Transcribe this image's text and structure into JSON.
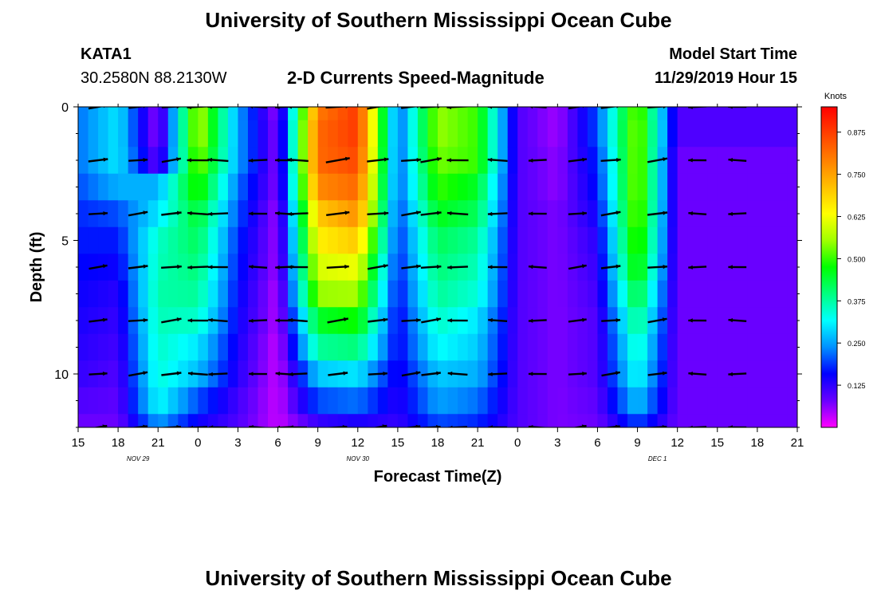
{
  "page": {
    "title_top": "University of Southern Mississippi Ocean Cube",
    "title_bottom": "University of Southern Mississippi Ocean Cube",
    "station": "KATA1",
    "coords": "30.2580N 88.2130W",
    "subtitle": "2-D Currents Speed-Magnitude",
    "start_label": "Model Start Time",
    "start_value": "11/29/2019 Hour 15"
  },
  "colors": {
    "scale": [
      "#ff00ff",
      "#6a00ff",
      "#0000ff",
      "#0090ff",
      "#00ffff",
      "#00ff80",
      "#00ff00",
      "#a0ff00",
      "#ffff00",
      "#ffc000",
      "#ff8000",
      "#ff4000",
      "#ff0000"
    ],
    "arrow": "#000000"
  },
  "chart_data": {
    "type": "heatmap",
    "title": "2-D Currents Speed-Magnitude",
    "xlabel": "Forecast Time(Z)",
    "ylabel": "Depth (ft)",
    "x_ticks": [
      "15",
      "18",
      "21",
      "0",
      "3",
      "6",
      "9",
      "12",
      "15",
      "18",
      "21",
      "0",
      "3",
      "6",
      "9",
      "12",
      "15",
      "18",
      "21"
    ],
    "x_range_hours": [
      0,
      54
    ],
    "date_labels": [
      {
        "label": "NOV 29",
        "hour": 4.5
      },
      {
        "label": "NOV 30",
        "hour": 21
      },
      {
        "label": "DEC 1",
        "hour": 43.5
      }
    ],
    "y_ticks": [
      0,
      5,
      10
    ],
    "y_range": [
      0,
      12
    ],
    "colorbar": {
      "label": "Knots",
      "range": [
        0,
        0.95
      ],
      "ticks": [
        0.125,
        0.25,
        0.375,
        0.5,
        0.625,
        0.75,
        0.875
      ],
      "tick_labels": [
        "0.125",
        "0.250",
        "0.375",
        "0.500",
        "0.625",
        "0.750",
        "0.875"
      ]
    },
    "arrow_depths": [
      0,
      2,
      4,
      6,
      8,
      10,
      12
    ],
    "arrow_hours": [
      1.5,
      4.5,
      7,
      9,
      10.5,
      13.5,
      15.5,
      16.5,
      19.5,
      22.5,
      25,
      26.5,
      28.5,
      31.5,
      34.5,
      37.5,
      40,
      43.5,
      46.5,
      49.5
    ],
    "columns": [
      {
        "hour": 0,
        "speed": [
          0.22,
          0.22,
          0.22,
          0.2,
          0.18,
          0.17,
          0.16,
          0.15,
          0.14,
          0.13,
          0.12,
          0.1,
          0.08
        ]
      },
      {
        "hour": 3,
        "speed": [
          0.3,
          0.3,
          0.3,
          0.26,
          0.2,
          0.17,
          0.15,
          0.13,
          0.12,
          0.11,
          0.1,
          0.09,
          0.08
        ]
      },
      {
        "hour": 6,
        "speed": [
          0.05,
          0.05,
          0.08,
          0.26,
          0.3,
          0.35,
          0.36,
          0.37,
          0.36,
          0.35,
          0.34,
          0.32,
          0.25
        ]
      },
      {
        "hour": 9,
        "speed": [
          0.58,
          0.58,
          0.55,
          0.5,
          0.45,
          0.42,
          0.4,
          0.38,
          0.35,
          0.3,
          0.27,
          0.2,
          0.15
        ]
      },
      {
        "hour": 12,
        "speed": [
          0.25,
          0.25,
          0.25,
          0.22,
          0.2,
          0.18,
          0.17,
          0.16,
          0.15,
          0.14,
          0.13,
          0.11,
          0.1
        ]
      },
      {
        "hour": 15,
        "speed": [
          0.05,
          0.06,
          0.06,
          0.06,
          0.05,
          0.05,
          0.05,
          0.04,
          0.04,
          0.03,
          0.03,
          0.03,
          0.03
        ]
      },
      {
        "hour": 18,
        "speed": [
          0.8,
          0.82,
          0.82,
          0.78,
          0.7,
          0.65,
          0.6,
          0.55,
          0.45,
          0.38,
          0.28,
          0.2,
          0.12
        ]
      },
      {
        "hour": 21,
        "speed": [
          0.88,
          0.88,
          0.86,
          0.82,
          0.77,
          0.7,
          0.62,
          0.56,
          0.48,
          0.4,
          0.3,
          0.22,
          0.14
        ]
      },
      {
        "hour": 24,
        "speed": [
          0.2,
          0.2,
          0.2,
          0.2,
          0.19,
          0.18,
          0.17,
          0.16,
          0.15,
          0.15,
          0.14,
          0.13,
          0.12
        ]
      },
      {
        "hour": 27,
        "speed": [
          0.55,
          0.55,
          0.53,
          0.5,
          0.46,
          0.42,
          0.4,
          0.38,
          0.35,
          0.32,
          0.28,
          0.25,
          0.2
        ]
      },
      {
        "hour": 30,
        "speed": [
          0.5,
          0.5,
          0.5,
          0.45,
          0.42,
          0.38,
          0.36,
          0.34,
          0.3,
          0.28,
          0.26,
          0.22,
          0.18
        ]
      },
      {
        "hour": 33,
        "speed": [
          0.1,
          0.1,
          0.1,
          0.1,
          0.1,
          0.1,
          0.1,
          0.1,
          0.1,
          0.1,
          0.1,
          0.1,
          0.1
        ]
      },
      {
        "hour": 36,
        "speed": [
          0.05,
          0.05,
          0.06,
          0.06,
          0.07,
          0.07,
          0.07,
          0.07,
          0.07,
          0.07,
          0.07,
          0.07,
          0.07
        ]
      },
      {
        "hour": 39,
        "speed": [
          0.2,
          0.2,
          0.18,
          0.17,
          0.15,
          0.13,
          0.12,
          0.11,
          0.1,
          0.1,
          0.1,
          0.09,
          0.08
        ]
      },
      {
        "hour": 42,
        "speed": [
          0.55,
          0.56,
          0.56,
          0.56,
          0.55,
          0.53,
          0.5,
          0.45,
          0.4,
          0.36,
          0.33,
          0.28,
          0.2
        ]
      },
      {
        "hour": 45,
        "speed": [
          0.1,
          0.1,
          0.08,
          0.08,
          0.08,
          0.08,
          0.08,
          0.08,
          0.08,
          0.08,
          0.08,
          0.08,
          0.08
        ]
      }
    ]
  }
}
